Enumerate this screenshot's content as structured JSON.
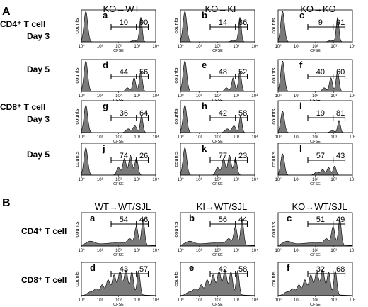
{
  "section_A": {
    "letter": "A",
    "columns": [
      "KO→WT",
      "KO→KI",
      "KO→KO"
    ],
    "rows": [
      {
        "label": [
          "CD4⁺ T cell",
          "Day 3"
        ],
        "panels": [
          {
            "letter": "a",
            "left": "10",
            "right": "90",
            "shape": "A_d3_cd4"
          },
          {
            "letter": "b",
            "left": "14",
            "right": "86",
            "shape": "A_d3_cd4"
          },
          {
            "letter": "c",
            "left": "9",
            "right": "91",
            "shape": "A_d3_cd4"
          }
        ]
      },
      {
        "label": [
          "Day 5"
        ],
        "panels": [
          {
            "letter": "d",
            "left": "44",
            "right": "56",
            "shape": "A_d5_cd4"
          },
          {
            "letter": "e",
            "left": "48",
            "right": "52",
            "shape": "A_d5_cd4"
          },
          {
            "letter": "f",
            "left": "40",
            "right": "60",
            "shape": "A_d5_cd4"
          }
        ]
      },
      {
        "label": [
          "CD8⁺ T cell",
          "Day 3"
        ],
        "panels": [
          {
            "letter": "g",
            "left": "36",
            "right": "64",
            "shape": "A_d3_cd8"
          },
          {
            "letter": "h",
            "left": "42",
            "right": "58",
            "shape": "A_d3_cd8"
          },
          {
            "letter": "i",
            "left": "19",
            "right": "81",
            "shape": "A_d3_cd8i"
          }
        ]
      },
      {
        "label": [
          "Day 5"
        ],
        "panels": [
          {
            "letter": "j",
            "left": "74",
            "right": "26",
            "shape": "A_d5_cd8"
          },
          {
            "letter": "k",
            "left": "77",
            "right": "23",
            "shape": "A_d5_cd8"
          },
          {
            "letter": "l",
            "left": "57",
            "right": "43",
            "shape": "A_d5_cd8l"
          }
        ]
      }
    ]
  },
  "section_B": {
    "letter": "B",
    "columns": [
      "WT→WT/SJL",
      "KI→WT/SJL",
      "KO→WT/SJL"
    ],
    "rows": [
      {
        "label": [
          "CD4⁺ T cell"
        ],
        "panels": [
          {
            "letter": "a",
            "left": "54",
            "right": "46",
            "shape": "B_cd4"
          },
          {
            "letter": "b",
            "left": "56",
            "right": "44",
            "shape": "B_cd4"
          },
          {
            "letter": "c",
            "left": "51",
            "right": "49",
            "shape": "B_cd4"
          }
        ]
      },
      {
        "label": [
          "CD8⁺ T cell"
        ],
        "panels": [
          {
            "letter": "d",
            "left": "43",
            "right": "57",
            "shape": "B_cd8"
          },
          {
            "letter": "e",
            "left": "42",
            "right": "58",
            "shape": "B_cd8"
          },
          {
            "letter": "f",
            "left": "32",
            "right": "68",
            "shape": "B_cd8"
          }
        ]
      }
    ]
  },
  "axis": {
    "y_label": "counts",
    "x_label": "CFSE",
    "ticks": [
      "10⁰",
      "10¹",
      "10²",
      "10³",
      "10⁴"
    ]
  },
  "colors": {
    "histogram_fill": "#7a7a7a",
    "outline": "#000000"
  }
}
